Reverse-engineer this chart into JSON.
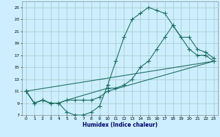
{
  "title": "",
  "xlabel": "Humidex (Indice chaleur)",
  "bg_color": "#cceeff",
  "line_color": "#1a6b5e",
  "grid_color": "#aacccc",
  "xlim": [
    -0.5,
    23.5
  ],
  "ylim": [
    7,
    26
  ],
  "xticks": [
    0,
    1,
    2,
    3,
    4,
    5,
    6,
    7,
    8,
    9,
    10,
    11,
    12,
    13,
    14,
    15,
    16,
    17,
    18,
    19,
    20,
    21,
    22,
    23
  ],
  "yticks": [
    7,
    9,
    11,
    13,
    15,
    17,
    19,
    21,
    23,
    25
  ],
  "line1_x": [
    0,
    1,
    2,
    3,
    4,
    5,
    6,
    7,
    8,
    9,
    10,
    11,
    12,
    13,
    14,
    15,
    16,
    17,
    18,
    20,
    21,
    22,
    23
  ],
  "line1_y": [
    11,
    9,
    9.5,
    9,
    9,
    7.5,
    7,
    7,
    7.5,
    8.5,
    12,
    16,
    20,
    23,
    24,
    25,
    24.5,
    24,
    22,
    18,
    17,
    17,
    16
  ],
  "line2_x": [
    0,
    1,
    2,
    3,
    4,
    5,
    10,
    11,
    12,
    13,
    14,
    15,
    16,
    17,
    18,
    19,
    20,
    21,
    22,
    23
  ],
  "line2_y": [
    11,
    9,
    9.5,
    9,
    9,
    9.5,
    11.5,
    11.5,
    12,
    13,
    15,
    16,
    18,
    20,
    22,
    20,
    20,
    18,
    17.5,
    16.5
  ],
  "line3_x": [
    0,
    1,
    2,
    3,
    4,
    5,
    6,
    7,
    8,
    9,
    10,
    23
  ],
  "line3_y": [
    11,
    9,
    9.5,
    9,
    9,
    9.5,
    9.5,
    9.5,
    9.5,
    10,
    11,
    16
  ],
  "line4_x": [
    0,
    23
  ],
  "line4_y": [
    11,
    16
  ]
}
